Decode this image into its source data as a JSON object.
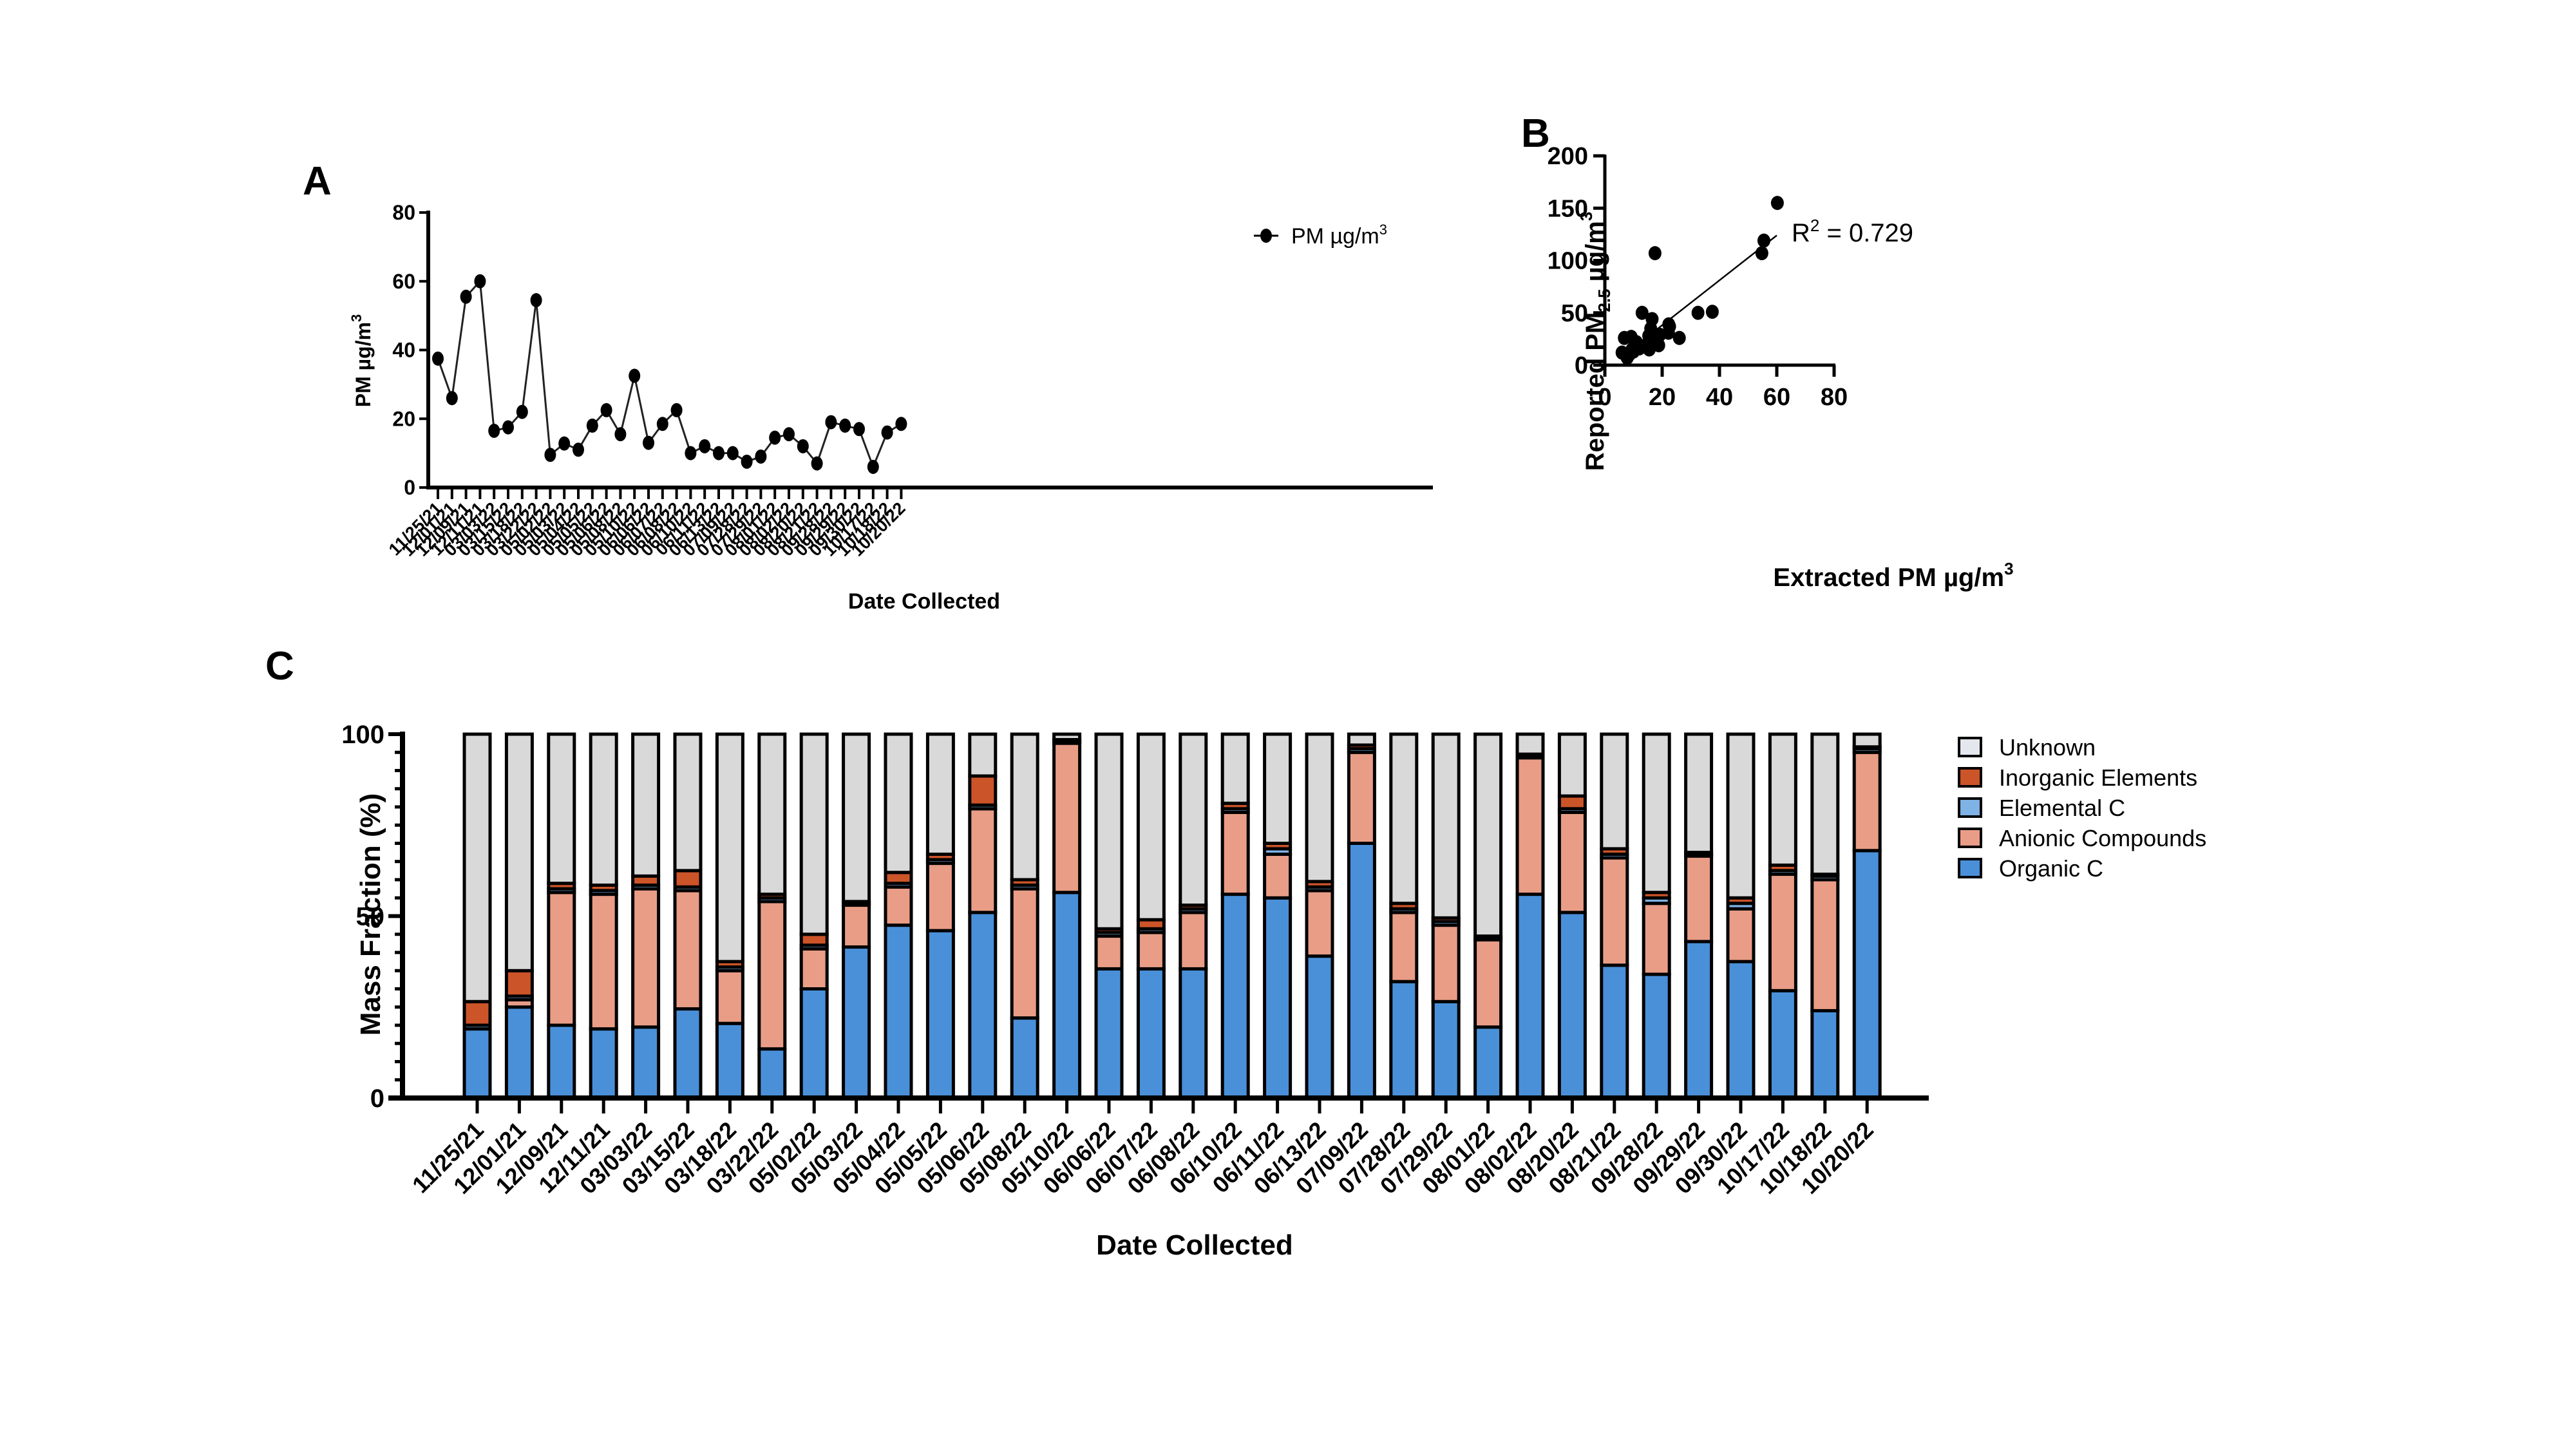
{
  "chart_data": [
    {
      "panel": "A",
      "type": "line",
      "title": "",
      "xlabel": "Date Collected",
      "ylabel": "PM µg/m³",
      "ylabel_text": "PM µg/m",
      "ylabel_sup": "3",
      "ylim": [
        0,
        80
      ],
      "yticks": [
        "0",
        "20",
        "40",
        "60",
        "80"
      ],
      "legend": {
        "label": "PM µg/m",
        "sup": "3",
        "position": "top-right"
      },
      "categories": [
        "11/25/21",
        "12/01/21",
        "12/09/21",
        "12/11/21",
        "03/03/22",
        "03/15/22",
        "03/18/22",
        "03/22/22",
        "05/02/22",
        "05/03/22",
        "05/04/22",
        "05/05/22",
        "05/06/22",
        "05/08/22",
        "05/10/22",
        "06/06/22",
        "06/07/22",
        "06/08/22",
        "06/10/22",
        "06/11/22",
        "06/13/22",
        "07/09/22",
        "07/28/22",
        "07/29/22",
        "08/01/22",
        "08/02/22",
        "08/20/22",
        "08/21/22",
        "09/28/22",
        "09/29/22",
        "09/30/22",
        "10/17/22",
        "10/18/22",
        "10/20/22"
      ],
      "series": [
        {
          "name": "PM µg/m³",
          "values": [
            37.5,
            26,
            55.5,
            60,
            16.5,
            17.5,
            22,
            54.5,
            9.5,
            12.8,
            11,
            18,
            22.5,
            15.5,
            32.5,
            13,
            18.5,
            22.5,
            10,
            12,
            10,
            10,
            7.5,
            9,
            14.5,
            15.5,
            12,
            7,
            19,
            18,
            17,
            6,
            16,
            18.5
          ]
        }
      ],
      "grid": false
    },
    {
      "panel": "B",
      "type": "scatter",
      "title": "",
      "xlabel": "Extracted PM µg/m³",
      "xlabel_text": "Extracted PM µg/m",
      "xlabel_sup": "3",
      "ylabel": "Reported PM2.5 µg/m³",
      "ylabel_parts": {
        "pre": "Reported PM",
        "sub": "2.5",
        "post": " µg/m",
        "sup": "3"
      },
      "xlim": [
        0,
        80
      ],
      "ylim": [
        0,
        200
      ],
      "xticks": [
        "0",
        "20",
        "40",
        "60",
        "80"
      ],
      "yticks": [
        "0",
        "50",
        "100",
        "150",
        "200"
      ],
      "annotation": {
        "pre": "R",
        "sup": "2",
        "post": " = 0.729"
      },
      "points": [
        {
          "x": 6,
          "y": 12
        },
        {
          "x": 6.8,
          "y": 26
        },
        {
          "x": 7.8,
          "y": 7
        },
        {
          "x": 8.5,
          "y": 10
        },
        {
          "x": 9.2,
          "y": 27
        },
        {
          "x": 9.5,
          "y": 15
        },
        {
          "x": 10,
          "y": 13
        },
        {
          "x": 10.5,
          "y": 18
        },
        {
          "x": 11,
          "y": 22
        },
        {
          "x": 11.5,
          "y": 20
        },
        {
          "x": 12,
          "y": 16
        },
        {
          "x": 12.5,
          "y": 17
        },
        {
          "x": 13,
          "y": 50
        },
        {
          "x": 13.5,
          "y": 18
        },
        {
          "x": 14.5,
          "y": 18
        },
        {
          "x": 15.3,
          "y": 28
        },
        {
          "x": 15.5,
          "y": 15
        },
        {
          "x": 16,
          "y": 35
        },
        {
          "x": 16.5,
          "y": 44
        },
        {
          "x": 17,
          "y": 30
        },
        {
          "x": 17.5,
          "y": 107
        },
        {
          "x": 18,
          "y": 26
        },
        {
          "x": 18.5,
          "y": 28
        },
        {
          "x": 18.8,
          "y": 19
        },
        {
          "x": 19.2,
          "y": 29
        },
        {
          "x": 22.2,
          "y": 31
        },
        {
          "x": 22.3,
          "y": 39
        },
        {
          "x": 22.6,
          "y": 37
        },
        {
          "x": 26,
          "y": 26
        },
        {
          "x": 32.5,
          "y": 50
        },
        {
          "x": 37.5,
          "y": 51
        },
        {
          "x": 54.8,
          "y": 107
        },
        {
          "x": 55.5,
          "y": 119
        },
        {
          "x": 60.2,
          "y": 155
        }
      ],
      "fit_line": {
        "x": [
          12,
          60
        ],
        "y": [
          21,
          124
        ]
      },
      "grid": false
    },
    {
      "panel": "C",
      "type": "bar",
      "stacked": true,
      "title": "",
      "xlabel": "Date Collected",
      "ylabel": "Mass Fraction (%)",
      "ylim": [
        0,
        100
      ],
      "yticks": [
        "0",
        "50",
        "100"
      ],
      "legend_position": "right",
      "categories": [
        "11/25/21",
        "12/01/21",
        "12/09/21",
        "12/11/21",
        "03/03/22",
        "03/15/22",
        "03/18/22",
        "03/22/22",
        "05/02/22",
        "05/03/22",
        "05/04/22",
        "05/05/22",
        "05/06/22",
        "05/08/22",
        "05/10/22",
        "06/06/22",
        "06/07/22",
        "06/08/22",
        "06/10/22",
        "06/11/22",
        "06/13/22",
        "07/09/22",
        "07/28/22",
        "07/29/22",
        "08/01/22",
        "08/02/22",
        "08/20/22",
        "08/21/22",
        "09/28/22",
        "09/29/22",
        "09/30/22",
        "10/17/22",
        "10/18/22",
        "10/20/22"
      ],
      "series": [
        {
          "name": "Organic C",
          "color": "#4a90d9",
          "values": [
            19,
            25,
            20,
            19,
            19.5,
            24.5,
            20.5,
            13.5,
            30,
            41.5,
            47.5,
            46,
            51,
            22,
            56.5,
            35.5,
            35.5,
            35.5,
            56,
            55,
            39,
            70,
            32,
            26.5,
            19.5,
            56,
            51,
            36.5,
            34,
            43,
            37.5,
            29.5,
            24,
            68
          ]
        },
        {
          "name": "Anionic Compounds",
          "color": "#e99d86",
          "values": [
            0,
            2,
            36.5,
            37,
            38,
            32.5,
            14.5,
            40.5,
            11,
            11.5,
            10.5,
            18.5,
            28.5,
            35.5,
            41,
            9,
            10,
            15.5,
            22.5,
            12,
            18,
            25,
            19,
            21,
            24,
            37.5,
            27.5,
            29.5,
            19.5,
            23.5,
            14.5,
            32,
            36,
            27
          ]
        },
        {
          "name": "Elemental C",
          "color": "#7fb2e5",
          "values": [
            1,
            1,
            1,
            1,
            1,
            1,
            1,
            1,
            1,
            0.5,
            1,
            1,
            1,
            1,
            0.5,
            1,
            1,
            1,
            1,
            1.5,
            1,
            1,
            1,
            1,
            0.5,
            0.5,
            1,
            1,
            1.5,
            0.5,
            1.5,
            1,
            1,
            1
          ]
        },
        {
          "name": "Inorganic Elements",
          "color": "#cc5429",
          "values": [
            6.5,
            7,
            1.5,
            1.5,
            2.5,
            4.5,
            1.5,
            1,
            3,
            0.5,
            3,
            1.5,
            8,
            1.5,
            0.5,
            1,
            2.5,
            1,
            1.5,
            1.5,
            1.5,
            1,
            1.5,
            1,
            0.5,
            0.5,
            3.5,
            1.5,
            1.5,
            0.5,
            1.5,
            1.5,
            0.5,
            0.5
          ]
        },
        {
          "name": "Unknown",
          "color": "#d9d9d9",
          "values": [
            73.5,
            65,
            41,
            41.5,
            39,
            37.5,
            62.5,
            44,
            55,
            46,
            38,
            33,
            11.5,
            40,
            1.5,
            53.5,
            51,
            47,
            19,
            30,
            40.5,
            3,
            46.5,
            50.5,
            55.5,
            5.5,
            17,
            31.5,
            43.5,
            32.5,
            45,
            36,
            38.5,
            3.5
          ]
        }
      ],
      "legend_order": [
        "Unknown",
        "Inorganic Elements",
        "Elemental C",
        "Anionic Compounds",
        "Organic C"
      ],
      "grid": false
    }
  ],
  "panels": {
    "a_label": "A",
    "b_label": "B",
    "c_label": "C"
  }
}
